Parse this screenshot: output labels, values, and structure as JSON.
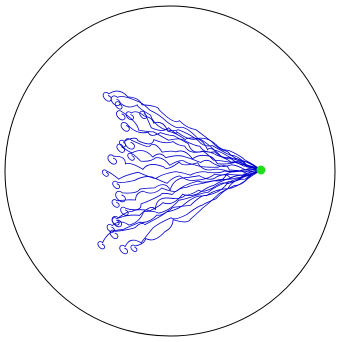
{
  "figure": {
    "arena_color": "#000000",
    "trajectory_color": "#0000cc",
    "target_color": "#22dd22"
  }
}
